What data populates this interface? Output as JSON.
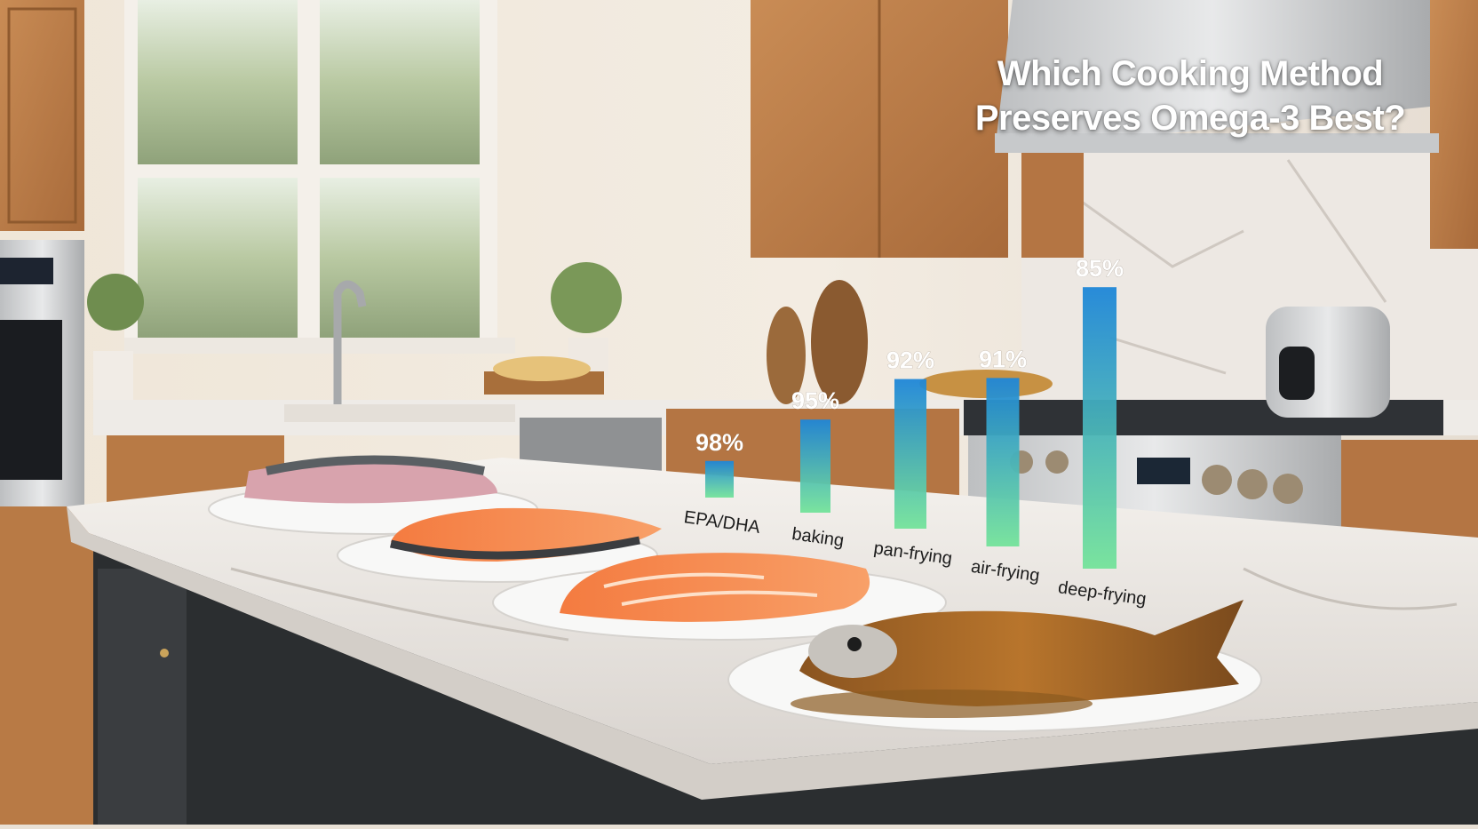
{
  "chart_data": {
    "type": "bar",
    "title_lines": [
      "Which Cooking Method",
      "Preserves Omega-3 Best?"
    ],
    "categories": [
      "EPA/DHA",
      "baking",
      "pan-frying",
      "air-frying",
      "deep-frying"
    ],
    "values": [
      98,
      95,
      92,
      91,
      85
    ],
    "value_labels": [
      "98%",
      "95%",
      "92%",
      "91%",
      "85%"
    ],
    "units": "%",
    "bar_gradient": {
      "top": "#1e86d8",
      "bottom": "#74e39a"
    },
    "grid": false,
    "legend": "none",
    "xlabel": "",
    "ylabel": ""
  },
  "scene": {
    "icons": [
      "kitchen-window",
      "faucet",
      "range-hood",
      "gas-stove",
      "air-fryer",
      "cutting-board",
      "raw-fish-fillet",
      "baked-salmon",
      "pan-fried-salmon",
      "deep-fried-fish"
    ]
  }
}
